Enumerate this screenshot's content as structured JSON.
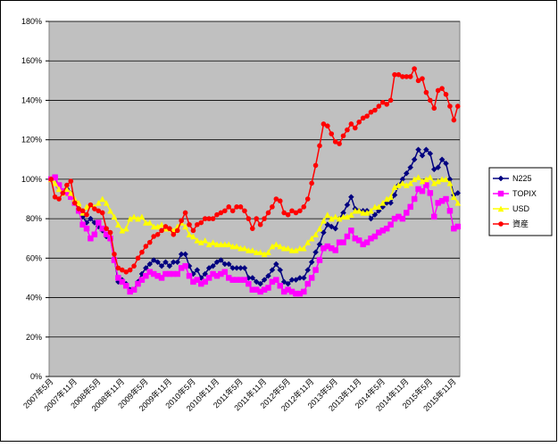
{
  "chart_data": {
    "type": "line",
    "categories": [
      "2007年5月",
      null,
      null,
      null,
      null,
      null,
      "2007年11月",
      null,
      null,
      null,
      null,
      null,
      "2008年5月",
      null,
      null,
      null,
      null,
      null,
      "2008年11月",
      null,
      null,
      null,
      null,
      null,
      "2009年5月",
      null,
      null,
      null,
      null,
      null,
      "2009年11月",
      null,
      null,
      null,
      null,
      null,
      "2010年5月",
      null,
      null,
      null,
      null,
      null,
      "2010年11月",
      null,
      null,
      null,
      null,
      null,
      "2011年5月",
      null,
      null,
      null,
      null,
      null,
      "2011年11月",
      null,
      null,
      null,
      null,
      null,
      "2012年5月",
      null,
      null,
      null,
      null,
      null,
      "2012年11月",
      null,
      null,
      null,
      null,
      null,
      "2013年5月",
      null,
      null,
      null,
      null,
      null,
      "2013年11月",
      null,
      null,
      null,
      null,
      null,
      "2014年5月",
      null,
      null,
      null,
      null,
      null,
      "2014年11月",
      null,
      null,
      null,
      null,
      null,
      "2015年5月",
      null,
      null,
      null,
      null,
      null,
      "2015年11月",
      null
    ],
    "series": [
      {
        "name": "N225",
        "color": "#000080",
        "marker": "diamond",
        "values": [
          100,
          101,
          96,
          94,
          95,
          93,
          88,
          85,
          81,
          78,
          80,
          78,
          76,
          74,
          71,
          70,
          60,
          48,
          49,
          47,
          44,
          44,
          48,
          52,
          55,
          57,
          59,
          58,
          56,
          58,
          56,
          58,
          58,
          62,
          62,
          56,
          52,
          54,
          50,
          52,
          55,
          56,
          58,
          59,
          57,
          57,
          55,
          55,
          55,
          55,
          50,
          50,
          48,
          47,
          49,
          51,
          54,
          57,
          54,
          48,
          47,
          49,
          49,
          50,
          50,
          54,
          58,
          63,
          67,
          73,
          77,
          76,
          75,
          80,
          83,
          87,
          91,
          85,
          84,
          84,
          84,
          80,
          82,
          84,
          86,
          88,
          88,
          92,
          97,
          100,
          103,
          106,
          110,
          115,
          112,
          115,
          113,
          105,
          106,
          110,
          108,
          100,
          92,
          93
        ]
      },
      {
        "name": "TOPIX",
        "color": "#ff00ff",
        "marker": "square",
        "values": [
          100,
          101,
          97,
          94,
          93,
          91,
          88,
          84,
          77,
          75,
          70,
          72,
          78,
          75,
          72,
          70,
          59,
          50,
          48,
          46,
          43,
          44,
          47,
          49,
          51,
          53,
          52,
          51,
          50,
          52,
          52,
          52,
          52,
          55,
          56,
          51,
          48,
          49,
          47,
          48,
          50,
          52,
          51,
          52,
          53,
          50,
          49,
          49,
          49,
          49,
          47,
          44,
          44,
          43,
          44,
          45,
          48,
          49,
          46,
          43,
          44,
          43,
          42,
          42,
          43,
          47,
          50,
          54,
          59,
          65,
          66,
          65,
          64,
          68,
          68,
          71,
          74,
          70,
          69,
          67,
          68,
          70,
          71,
          73,
          74,
          75,
          77,
          80,
          81,
          80,
          83,
          86,
          90,
          95,
          94,
          97,
          93,
          81,
          88,
          89,
          90,
          84,
          75,
          76
        ]
      },
      {
        "name": "USD",
        "color": "#ffff00",
        "marker": "triangle",
        "values": [
          100,
          98,
          95,
          93,
          95,
          93,
          90,
          88,
          83,
          86,
          87,
          86,
          88,
          90,
          88,
          84,
          81,
          77,
          74,
          75,
          80,
          81,
          80,
          81,
          78,
          78,
          76,
          76,
          77,
          75,
          75,
          74,
          76,
          78,
          76,
          72,
          71,
          69,
          68,
          69,
          67,
          68,
          67,
          67,
          67,
          67,
          66,
          66,
          65,
          65,
          64,
          64,
          63,
          63,
          62,
          63,
          66,
          67,
          66,
          65,
          65,
          64,
          64,
          65,
          65,
          68,
          70,
          72,
          75,
          79,
          82,
          80,
          81,
          80,
          81,
          81,
          82,
          84,
          84,
          83,
          83,
          84,
          86,
          86,
          88,
          90,
          91,
          96,
          97,
          98,
          97,
          98,
          100,
          101,
          99,
          100,
          101,
          98,
          99,
          100,
          100,
          98,
          91,
          88
        ]
      },
      {
        "name": "資産",
        "color": "#ff0000",
        "marker": "circle",
        "values": [
          100,
          91,
          90,
          93,
          97,
          99,
          88,
          85,
          84,
          82,
          87,
          85,
          84,
          83,
          75,
          73,
          62,
          55,
          54,
          53,
          54,
          56,
          60,
          63,
          66,
          68,
          71,
          72,
          74,
          76,
          75,
          72,
          74,
          79,
          83,
          77,
          74,
          77,
          78,
          80,
          80,
          80,
          82,
          83,
          84,
          86,
          84,
          86,
          86,
          84,
          80,
          75,
          80,
          77,
          80,
          83,
          86,
          90,
          89,
          83,
          82,
          84,
          83,
          84,
          86,
          90,
          98,
          107,
          117,
          128,
          127,
          123,
          119,
          118,
          122,
          125,
          128,
          126,
          129,
          131,
          132,
          134,
          135,
          137,
          139,
          138,
          140,
          153,
          153,
          152,
          152,
          152,
          156,
          150,
          151,
          144,
          140,
          136,
          145,
          146,
          143,
          137,
          130,
          137
        ]
      }
    ],
    "ylim": [
      0,
      180
    ],
    "yticks": [
      {
        "value": 0,
        "label": "0%"
      },
      {
        "value": 20,
        "label": "20%"
      },
      {
        "value": 40,
        "label": "40%"
      },
      {
        "value": 60,
        "label": "60%"
      },
      {
        "value": 80,
        "label": "80%"
      },
      {
        "value": 100,
        "label": "100%"
      },
      {
        "value": 120,
        "label": "120%"
      },
      {
        "value": 140,
        "label": "140%"
      },
      {
        "value": 160,
        "label": "160%"
      },
      {
        "value": 180,
        "label": "180%"
      }
    ],
    "grid": true,
    "legend": "right"
  }
}
